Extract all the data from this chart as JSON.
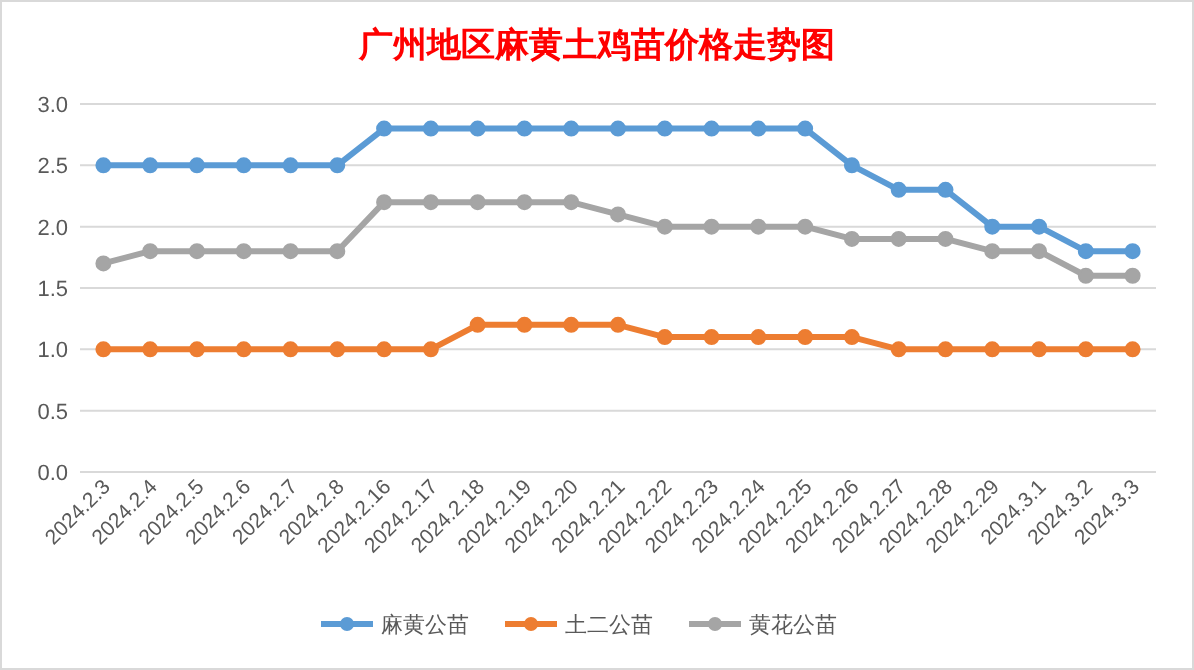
{
  "chart_data": {
    "type": "line",
    "title": "广州地区麻黄土鸡苗价格走势图",
    "categories": [
      "2024.2.3",
      "2024.2.4",
      "2024.2.5",
      "2024.2.6",
      "2024.2.7",
      "2024.2.8",
      "2024.2.16",
      "2024.2.17",
      "2024.2.18",
      "2024.2.19",
      "2024.2.20",
      "2024.2.21",
      "2024.2.22",
      "2024.2.23",
      "2024.2.24",
      "2024.2.25",
      "2024.2.26",
      "2024.2.27",
      "2024.2.28",
      "2024.2.29",
      "2024.3.1",
      "2024.3.2",
      "2024.3.3"
    ],
    "series": [
      {
        "name": "麻黄公苗",
        "color": "#5b9bd5",
        "values": [
          2.5,
          2.5,
          2.5,
          2.5,
          2.5,
          2.5,
          2.8,
          2.8,
          2.8,
          2.8,
          2.8,
          2.8,
          2.8,
          2.8,
          2.8,
          2.8,
          2.5,
          2.3,
          2.3,
          2.0,
          2.0,
          1.8,
          1.8
        ]
      },
      {
        "name": "土二公苗",
        "color": "#ed7d31",
        "values": [
          1.0,
          1.0,
          1.0,
          1.0,
          1.0,
          1.0,
          1.0,
          1.0,
          1.2,
          1.2,
          1.2,
          1.2,
          1.1,
          1.1,
          1.1,
          1.1,
          1.1,
          1.0,
          1.0,
          1.0,
          1.0,
          1.0,
          1.0
        ]
      },
      {
        "name": "黄花公苗",
        "color": "#a5a5a5",
        "values": [
          1.7,
          1.8,
          1.8,
          1.8,
          1.8,
          1.8,
          2.2,
          2.2,
          2.2,
          2.2,
          2.2,
          2.1,
          2.0,
          2.0,
          2.0,
          2.0,
          1.9,
          1.9,
          1.9,
          1.8,
          1.8,
          1.6,
          1.6
        ]
      }
    ],
    "ylim": [
      0,
      3
    ],
    "yticks": [
      {
        "value": 0,
        "label": "0.0"
      },
      {
        "value": 0.5,
        "label": "0.5"
      },
      {
        "value": 1,
        "label": "1.0"
      },
      {
        "value": 1.5,
        "label": "1.5"
      },
      {
        "value": 2,
        "label": "2.0"
      },
      {
        "value": 2.5,
        "label": "2.5"
      },
      {
        "value": 3,
        "label": "3.0"
      }
    ],
    "grid": "y",
    "legend": "bottom",
    "marker": "circle",
    "line_style": "solid"
  }
}
